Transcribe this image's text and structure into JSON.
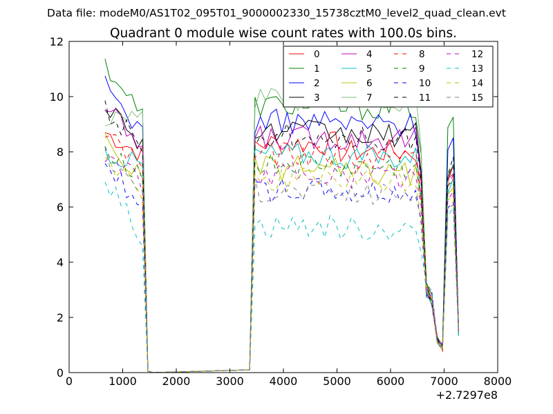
{
  "supertitle": "Data file: modeM0/AS1T02_095T01_9000002330_15738cztM0_level2_quad_clean.evt",
  "chart_data": {
    "type": "line",
    "title": "Quadrant 0 module wise count rates with 100.0s bins.",
    "xlabel": "",
    "ylabel": "",
    "x_offset_label": "+2.7297e8",
    "xlim": [
      0,
      8000
    ],
    "ylim": [
      0,
      12
    ],
    "xticks": [
      0,
      1000,
      2000,
      3000,
      4000,
      5000,
      6000,
      7000,
      8000
    ],
    "yticks": [
      0,
      2,
      4,
      6,
      8,
      10,
      12
    ],
    "grid": false,
    "legend_placement": "top-right",
    "legend_columns": 4,
    "x": [
      670,
      770,
      870,
      970,
      1070,
      1170,
      1270,
      1370,
      1470,
      1570,
      3370,
      3470,
      3570,
      3670,
      3770,
      3870,
      3970,
      4070,
      4170,
      4270,
      4370,
      4470,
      4570,
      4670,
      4770,
      4870,
      4970,
      5070,
      5170,
      5270,
      5370,
      5470,
      5570,
      5670,
      5770,
      5870,
      5970,
      6070,
      6170,
      6270,
      6370,
      6470,
      6570,
      6670,
      6770,
      6870,
      6970,
      7070,
      7170,
      7270
    ],
    "series": [
      {
        "name": "0",
        "color": "#ff0000",
        "dash": "solid",
        "level": 8.3,
        "early": 8.7,
        "final": 8.0,
        "peak": 7.4
      },
      {
        "name": "1",
        "color": "#008000",
        "dash": "solid",
        "level": 9.7,
        "early": 11.2,
        "final": 9.6,
        "peak": 9.2
      },
      {
        "name": "2",
        "color": "#0000ff",
        "dash": "solid",
        "level": 9.1,
        "early": 10.4,
        "final": 9.0,
        "peak": 8.5
      },
      {
        "name": "3",
        "color": "#000000",
        "dash": "solid",
        "level": 8.7,
        "early": 9.8,
        "final": 8.6,
        "peak": 7.6
      },
      {
        "name": "4",
        "color": "#bf00bf",
        "dash": "solid",
        "level": 8.5,
        "early": 9.6,
        "final": 8.5,
        "peak": 7.3
      },
      {
        "name": "5",
        "color": "#00bfbf",
        "dash": "solid",
        "level": 7.9,
        "early": 8.0,
        "final": 7.8,
        "peak": 6.9
      },
      {
        "name": "6",
        "color": "#bfbf00",
        "dash": "solid",
        "level": 7.4,
        "early": 8.4,
        "final": 7.2,
        "peak": 6.6
      },
      {
        "name": "7",
        "color": "#7fbf7f",
        "dash": "solid",
        "level": 9.9,
        "early": 9.3,
        "final": 9.9,
        "peak": 7.5
      },
      {
        "name": "8",
        "color": "#ff0000",
        "dash": "dash",
        "level": 7.9,
        "early": 8.7,
        "final": 7.8,
        "peak": 7.2
      },
      {
        "name": "9",
        "color": "#008000",
        "dash": "dash",
        "level": 7.5,
        "early": 8.2,
        "final": 7.4,
        "peak": 7.0
      },
      {
        "name": "10",
        "color": "#0000ff",
        "dash": "dash",
        "level": 6.6,
        "early": 7.4,
        "final": 6.5,
        "peak": 6.3
      },
      {
        "name": "11",
        "color": "#000000",
        "dash": "dash",
        "level": 8.6,
        "early": 9.5,
        "final": 8.5,
        "peak": 7.7
      },
      {
        "name": "12",
        "color": "#bf00bf",
        "dash": "dash",
        "level": 7.2,
        "early": 7.9,
        "final": 7.1,
        "peak": 6.5
      },
      {
        "name": "13",
        "color": "#00bfbf",
        "dash": "dash",
        "level": 5.3,
        "early": 7.0,
        "final": 5.2,
        "peak": 6.0
      },
      {
        "name": "14",
        "color": "#bfbf00",
        "dash": "dash",
        "level": 7.0,
        "early": 7.7,
        "final": 6.9,
        "peak": 6.4
      },
      {
        "name": "15",
        "color": "#808080",
        "dash": "dash",
        "level": 6.6,
        "early": 7.9,
        "final": 6.5,
        "peak": 6.2
      }
    ]
  }
}
